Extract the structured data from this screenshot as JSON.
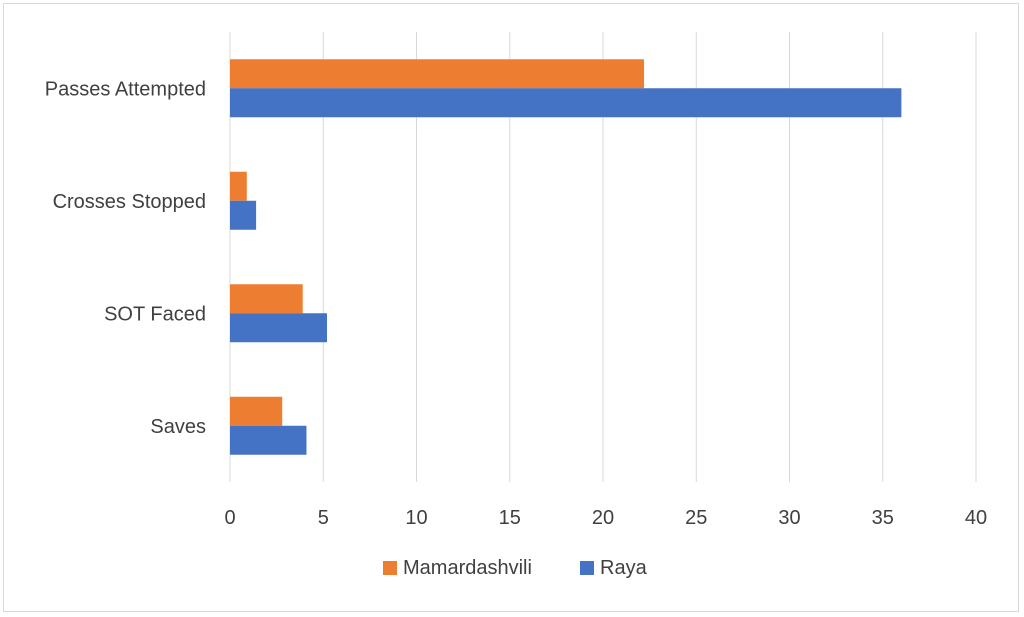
{
  "chart_data": {
    "type": "bar",
    "orientation": "horizontal",
    "categories": [
      "Passes Attempted",
      "Crosses Stopped",
      "SOT Faced",
      "Saves"
    ],
    "series": [
      {
        "name": "Mamardashvili",
        "color": "#ED7D31",
        "values": [
          22.2,
          0.9,
          3.9,
          2.8
        ]
      },
      {
        "name": "Raya",
        "color": "#4472C4",
        "values": [
          36.0,
          1.4,
          5.2,
          4.1
        ]
      }
    ],
    "xlim": [
      0,
      40
    ],
    "xticks": [
      "0",
      "5",
      "10",
      "15",
      "20",
      "25",
      "30",
      "35",
      "40"
    ],
    "grid": true,
    "legend": "bottom",
    "title": "",
    "xlabel": "",
    "ylabel": ""
  }
}
